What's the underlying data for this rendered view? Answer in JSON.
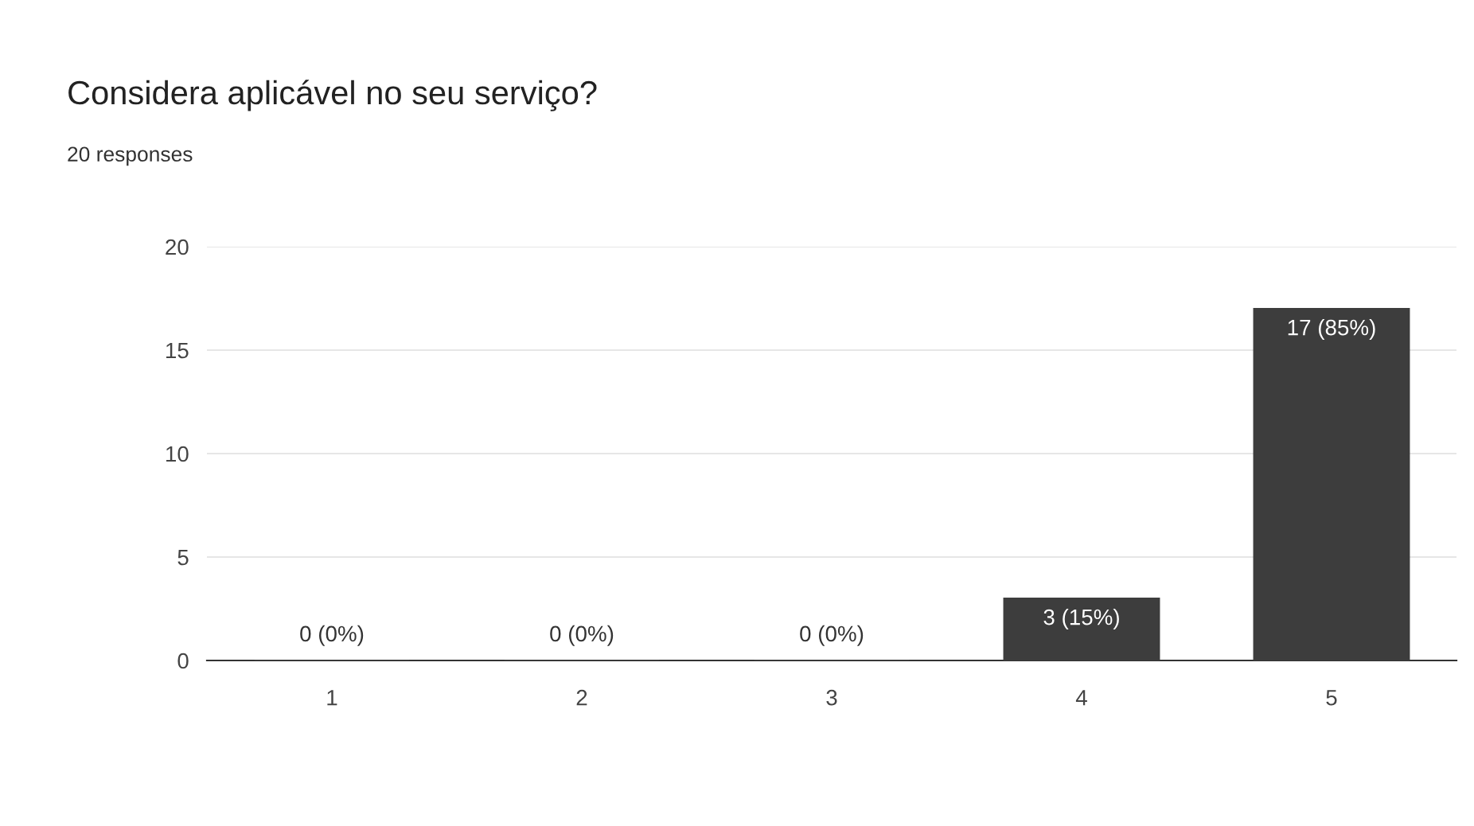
{
  "chart_data": {
    "type": "bar",
    "title": "Considera aplicável no seu serviço?",
    "subtitle": "20 responses",
    "categories": [
      "1",
      "2",
      "3",
      "4",
      "5"
    ],
    "values": [
      0,
      0,
      0,
      3,
      17
    ],
    "value_labels": [
      "0 (0%)",
      "0 (0%)",
      "0 (0%)",
      "3 (15%)",
      "17 (85%)"
    ],
    "color": "#3d3d3d",
    "ylim": [
      0,
      20
    ],
    "yticks": [
      0,
      5,
      10,
      15,
      20
    ],
    "grid": "y"
  }
}
